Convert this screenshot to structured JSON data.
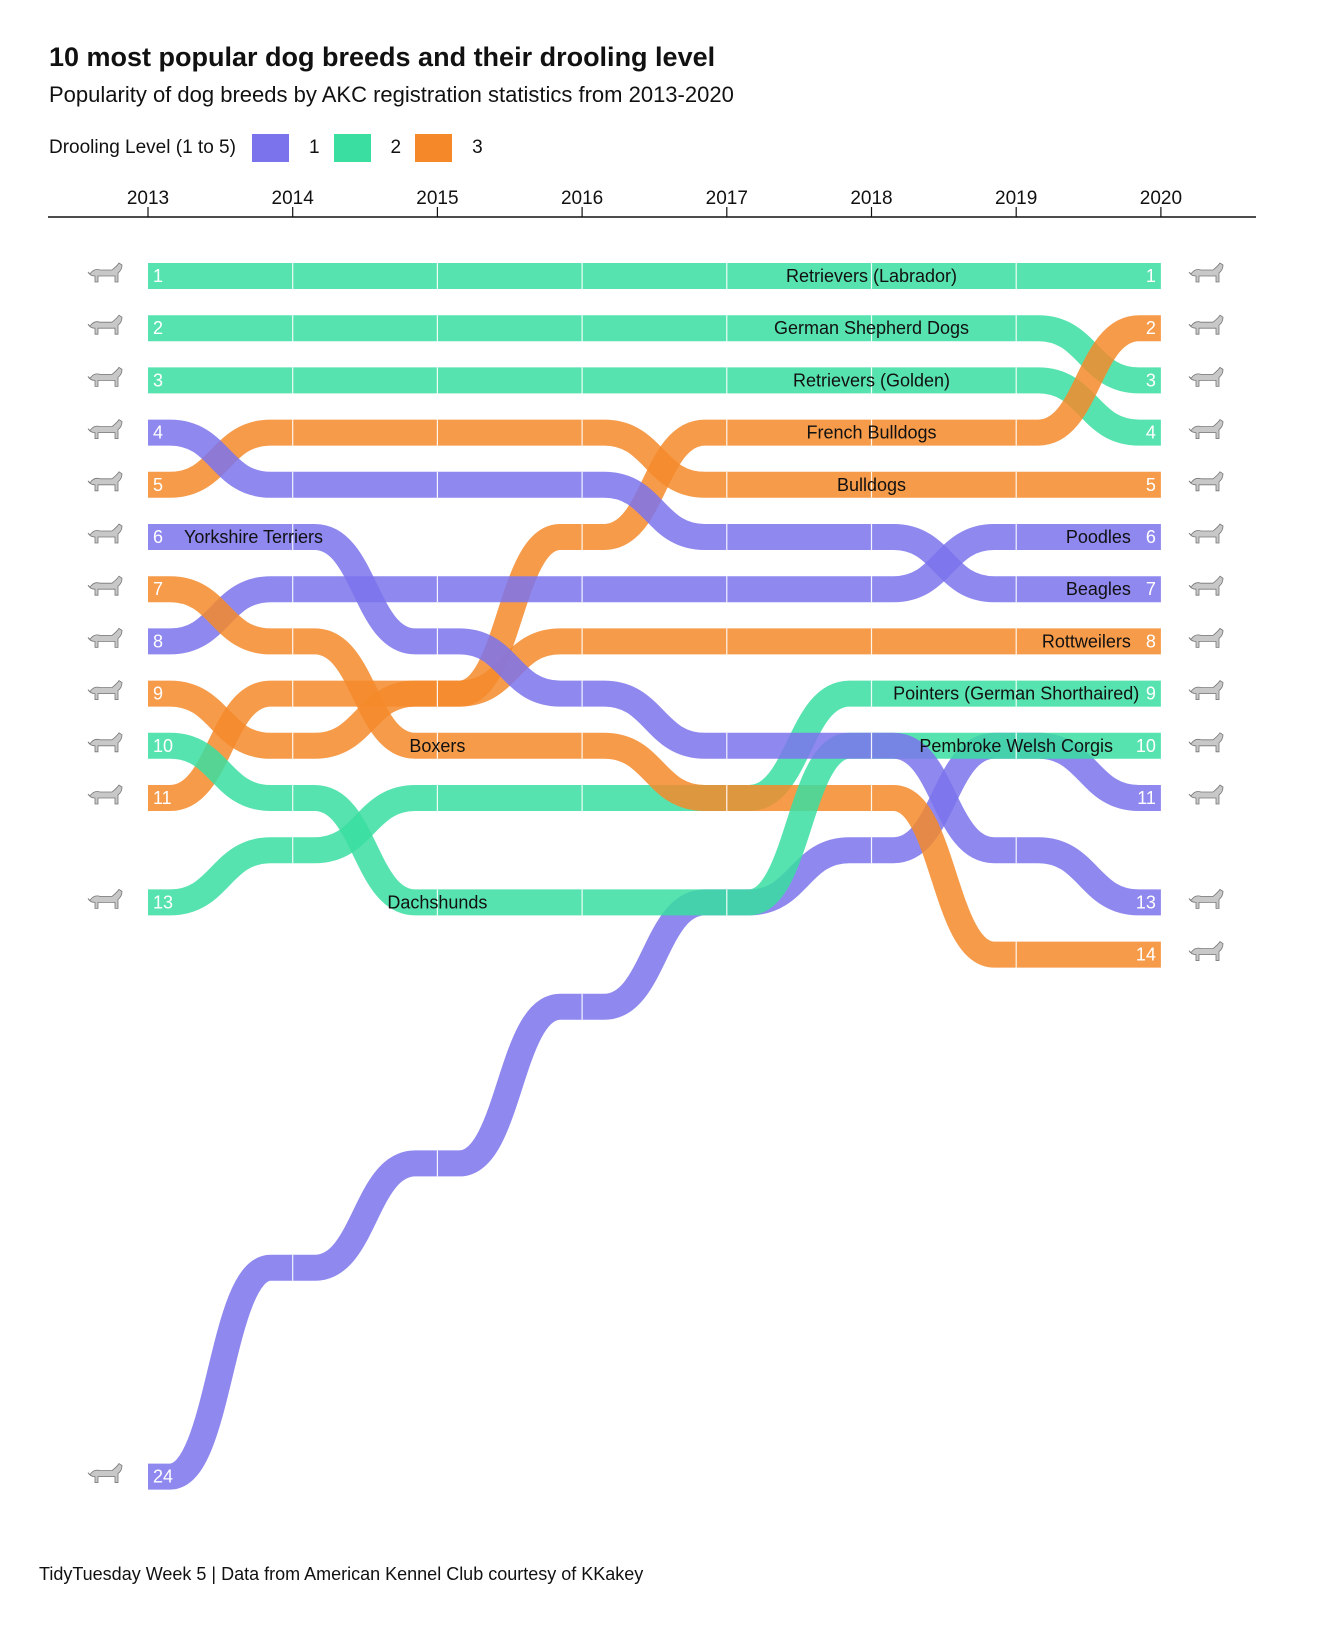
{
  "title": "10 most popular dog breeds and their drooling level",
  "subtitle": "Popularity of dog breeds by AKC registration statistics from 2013-2020",
  "legend": {
    "title": "Drooling Level (1 to 5)",
    "items": [
      {
        "label": "1",
        "color": "#7B73EC"
      },
      {
        "label": "2",
        "color": "#3ADEA1"
      },
      {
        "label": "3",
        "color": "#F5892A"
      }
    ]
  },
  "caption": "TidyTuesday Week 5 | Data from American Kennel Club courtesy of KKakey",
  "chart_data": {
    "type": "line",
    "x": [
      2013,
      2014,
      2015,
      2016,
      2017,
      2018,
      2019,
      2020
    ],
    "y_axis": "rank (1 at top)",
    "series": [
      {
        "name": "Retrievers (Labrador)",
        "drool": 2,
        "ranks": [
          1,
          1,
          1,
          1,
          1,
          1,
          1,
          1
        ],
        "label_year": 2018
      },
      {
        "name": "German Shepherd Dogs",
        "drool": 2,
        "ranks": [
          2,
          2,
          2,
          2,
          2,
          2,
          2,
          3
        ],
        "label_year": 2018
      },
      {
        "name": "Retrievers (Golden)",
        "drool": 2,
        "ranks": [
          3,
          3,
          3,
          3,
          3,
          3,
          3,
          4
        ],
        "label_year": 2018
      },
      {
        "name": "French Bulldogs",
        "drool": 3,
        "ranks": [
          11,
          9,
          9,
          6,
          4,
          4,
          4,
          2
        ],
        "label_year": 2018
      },
      {
        "name": "Bulldogs",
        "drool": 3,
        "ranks": [
          5,
          4,
          4,
          4,
          5,
          5,
          5,
          5
        ],
        "label_year": 2018
      },
      {
        "name": "Poodles",
        "drool": 1,
        "ranks": [
          8,
          7,
          7,
          7,
          7,
          7,
          6,
          6
        ],
        "label_year": 2020
      },
      {
        "name": "Beagles",
        "drool": 1,
        "ranks": [
          4,
          5,
          5,
          5,
          6,
          6,
          7,
          7
        ],
        "label_year": 2020
      },
      {
        "name": "Rottweilers",
        "drool": 3,
        "ranks": [
          9,
          10,
          9,
          8,
          8,
          8,
          8,
          8
        ],
        "label_year": 2020
      },
      {
        "name": "Pointers (German Shorthaired)",
        "drool": 2,
        "ranks": [
          13,
          12,
          11,
          11,
          11,
          9,
          9,
          9
        ],
        "label_year": 2019
      },
      {
        "name": "Pembroke Welsh Corgis",
        "drool": 1,
        "ranks": [
          24,
          20,
          18,
          15,
          13,
          12,
          10,
          11
        ],
        "label_year": 2019
      },
      {
        "name": "Boxers",
        "drool": 3,
        "ranks": [
          7,
          8,
          10,
          10,
          11,
          11,
          14,
          14
        ],
        "label_year": 2015
      },
      {
        "name": "Dachshunds",
        "drool": 2,
        "ranks": [
          10,
          11,
          13,
          13,
          13,
          10,
          10,
          10
        ],
        "label_year": 2015
      },
      {
        "name": "Yorkshire Terriers",
        "drool": 1,
        "ranks": [
          6,
          6,
          8,
          9,
          10,
          10,
          12,
          13
        ],
        "label_year": 2013
      }
    ],
    "icon_ranks_left": [
      1,
      2,
      3,
      4,
      5,
      6,
      7,
      8,
      9,
      10,
      11,
      13,
      24
    ],
    "icon_ranks_right": [
      1,
      2,
      3,
      4,
      5,
      6,
      7,
      8,
      9,
      10,
      11,
      13,
      14
    ]
  }
}
